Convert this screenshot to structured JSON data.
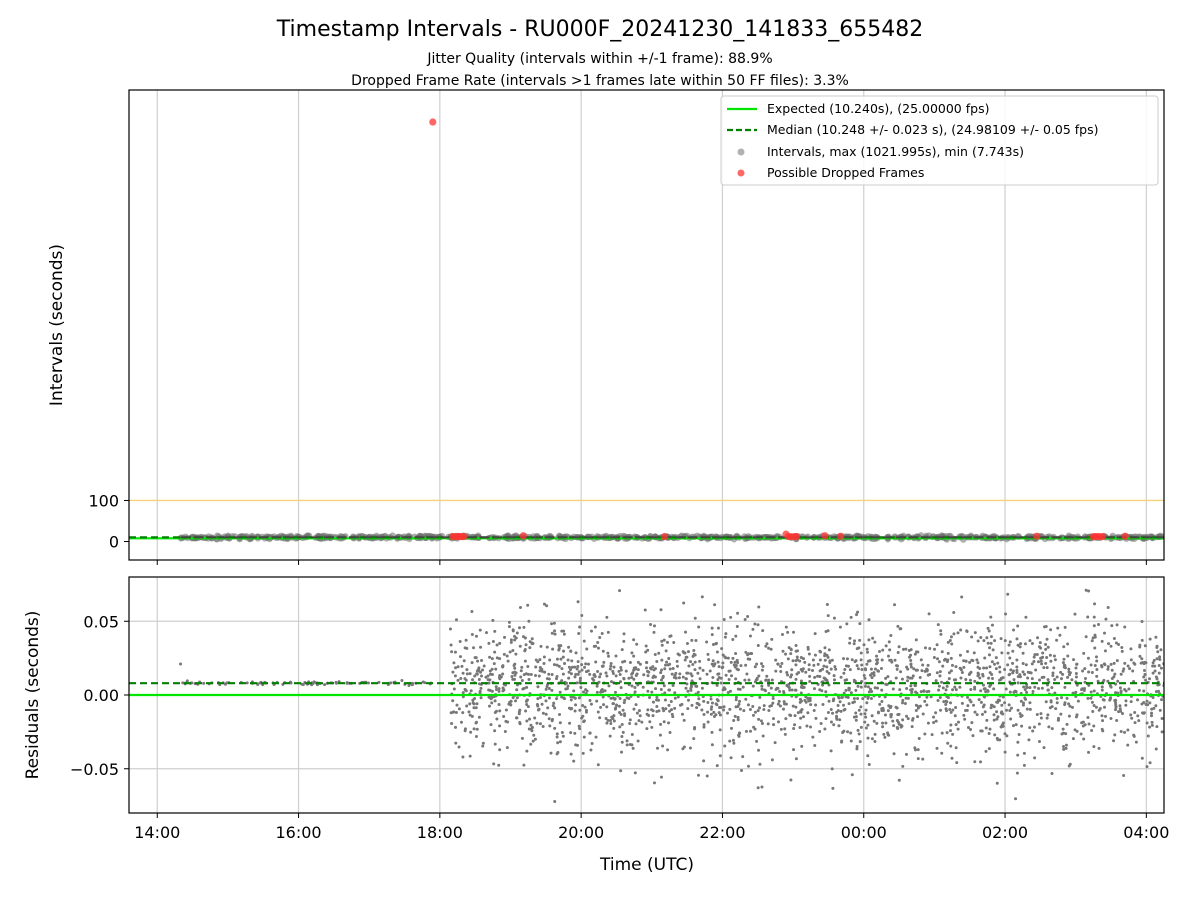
{
  "chart_data": [
    {
      "type": "scatter",
      "panel": "intervals",
      "title": "Timestamp Intervals - RU000F_20241230_141833_655482",
      "subtitle_lines": [
        "Jitter Quality (intervals within +/-1 frame): 88.9%",
        "Dropped Frame Rate (intervals >1 frames late within 50 FF files): 3.3%"
      ],
      "ylabel": "Intervals (seconds)",
      "y_ticks": [
        0,
        100
      ],
      "y_tick_labels": [
        "0",
        "100"
      ],
      "ylim": [
        -45,
        1100
      ],
      "grid": "vertical",
      "legend_position": "top-right",
      "reference_lines": [
        {
          "name": "Expected (10.240s), (25.00000 fps)",
          "value": 10.24,
          "style": "solid",
          "color": "#00e600"
        },
        {
          "name": "Median (10.248 +/- 0.023 s), (24.98109 +/- 0.05 fps)",
          "value": 10.248,
          "style": "dashed",
          "color": "#008000"
        },
        {
          "name": "",
          "value": 100,
          "style": "solid",
          "color": "#f5d27a"
        }
      ],
      "series": [
        {
          "name": "Intervals, max (1021.995s), min (7.743s)",
          "color": "#9e9e9e",
          "x_range_hours": [
            14.33,
            28.25
          ],
          "value": 10.25
        },
        {
          "name": "Possible Dropped Frames",
          "color": "#ff3333",
          "points": [
            {
              "x": 17.9,
              "y": 1021.995
            },
            {
              "x": 18.18,
              "y": 12
            },
            {
              "x": 18.22,
              "y": 12
            },
            {
              "x": 18.25,
              "y": 12
            },
            {
              "x": 18.28,
              "y": 12
            },
            {
              "x": 18.31,
              "y": 12
            },
            {
              "x": 18.34,
              "y": 12
            },
            {
              "x": 19.18,
              "y": 14
            },
            {
              "x": 21.18,
              "y": 12
            },
            {
              "x": 22.9,
              "y": 18
            },
            {
              "x": 22.93,
              "y": 12
            },
            {
              "x": 22.97,
              "y": 12
            },
            {
              "x": 23.02,
              "y": 12
            },
            {
              "x": 23.05,
              "y": 12
            },
            {
              "x": 23.45,
              "y": 14
            },
            {
              "x": 23.67,
              "y": 13
            },
            {
              "x": 26.45,
              "y": 13
            },
            {
              "x": 27.25,
              "y": 12
            },
            {
              "x": 27.28,
              "y": 12
            },
            {
              "x": 27.31,
              "y": 12
            },
            {
              "x": 27.34,
              "y": 12
            },
            {
              "x": 27.38,
              "y": 12
            },
            {
              "x": 27.7,
              "y": 13
            }
          ]
        }
      ]
    },
    {
      "type": "scatter",
      "panel": "residuals",
      "xlabel": "Time (UTC)",
      "ylabel": "Residuals (seconds)",
      "x_ticks": [
        14,
        16,
        18,
        20,
        22,
        24,
        26,
        28
      ],
      "x_tick_labels": [
        "14:00",
        "16:00",
        "18:00",
        "20:00",
        "22:00",
        "00:00",
        "02:00",
        "04:00"
      ],
      "xlim_hours": [
        13.6,
        28.25
      ],
      "y_ticks": [
        -0.05,
        0.0,
        0.05
      ],
      "y_tick_labels": [
        "−0.05",
        "0.00",
        "0.05"
      ],
      "ylim": [
        -0.08,
        0.08
      ],
      "grid": "both",
      "reference_lines": [
        {
          "value": 0.0,
          "style": "solid",
          "color": "#00e600"
        },
        {
          "value": 0.008,
          "style": "dashed",
          "color": "#008000"
        }
      ],
      "series": [
        {
          "color": "#777777",
          "segments": [
            {
              "x_range_hours": [
                14.33,
                17.92
              ],
              "center": 0.008,
              "spread": 0.0006,
              "count": 90,
              "outlier": {
                "x": 14.33,
                "y": 0.021
              }
            },
            {
              "x_range_hours": [
                18.15,
                28.25
              ],
              "center": 0.005,
              "spread": 0.022,
              "count": 2300
            }
          ]
        }
      ]
    }
  ]
}
